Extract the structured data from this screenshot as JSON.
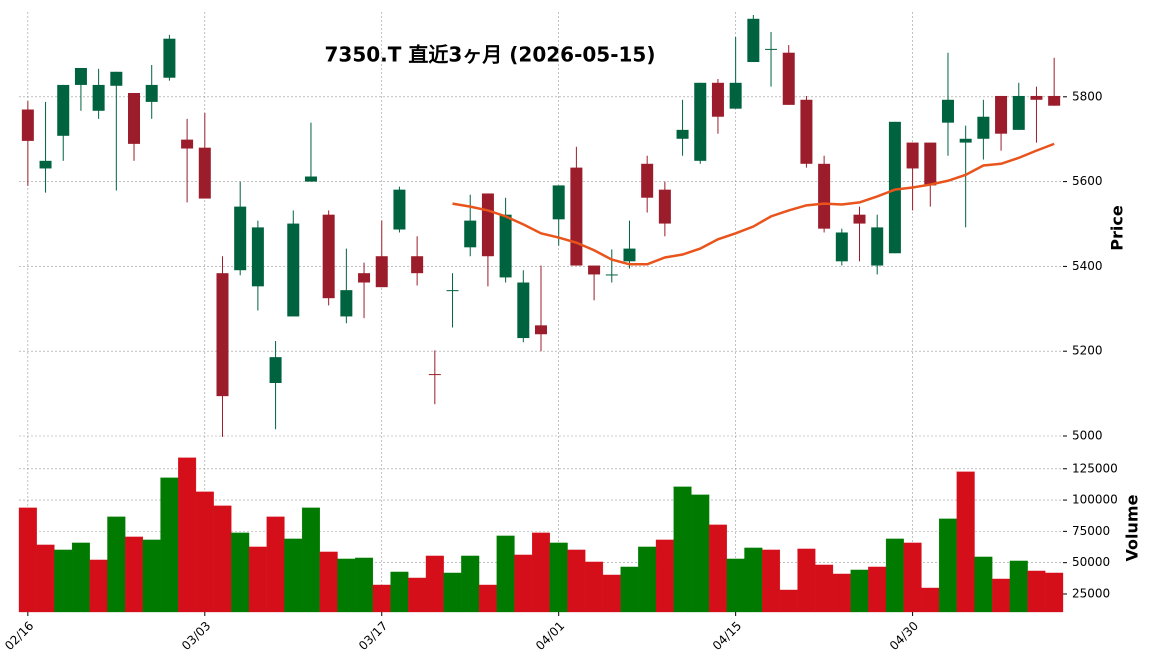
{
  "chart_data": {
    "type": "candlestick",
    "title": "7350.T  直近3ヶ月  (2026-05-15)",
    "categories": [
      "02/16",
      null,
      null,
      null,
      null,
      null,
      null,
      null,
      null,
      null,
      "03/03",
      null,
      null,
      null,
      null,
      null,
      null,
      null,
      null,
      null,
      "03/17",
      null,
      null,
      null,
      null,
      null,
      null,
      null,
      null,
      null,
      "04/01",
      null,
      null,
      null,
      null,
      null,
      null,
      null,
      null,
      null,
      "04/15",
      null,
      null,
      null,
      null,
      null,
      null,
      null,
      null,
      null,
      "04/30",
      null,
      null,
      null,
      null,
      null,
      null,
      null,
      null
    ],
    "open": [
      5770,
      5631,
      5708,
      5828,
      5767,
      5826,
      5809,
      5788,
      5845,
      5699,
      5680,
      5384,
      5391,
      5353,
      5125,
      5282,
      5600,
      5522,
      5282,
      5384,
      5424,
      5487,
      5424,
      5146,
      5344,
      5445,
      5572,
      5374,
      5231,
      5261,
      5511,
      5633,
      5402,
      5381,
      5412,
      5642,
      5581,
      5701,
      5649,
      5833,
      5772,
      5882,
      5913,
      5904,
      5793,
      5642,
      5412,
      5522,
      5402,
      5431,
      5692,
      5692,
      5739,
      5692,
      5701,
      5802,
      5722,
      5802,
      5802
    ],
    "high": [
      5790,
      5788,
      5828,
      5868,
      5866,
      5859,
      5809,
      5875,
      5946,
      5748,
      5762,
      5424,
      5600,
      5508,
      5224,
      5532,
      5739,
      5532,
      5442,
      5409,
      5508,
      5588,
      5471,
      5202,
      5384,
      5569,
      5572,
      5562,
      5391,
      5402,
      5591,
      5682,
      5402,
      5440,
      5508,
      5661,
      5600,
      5793,
      5833,
      5842,
      5941,
      5993,
      5953,
      5922,
      5802,
      5661,
      5489,
      5541,
      5522,
      5741,
      5692,
      5692,
      5904,
      5732,
      5793,
      5802,
      5833,
      5824,
      5892
    ],
    "low": [
      5590,
      5574,
      5649,
      5767,
      5748,
      5579,
      5649,
      5748,
      5838,
      5551,
      5560,
      4998,
      5379,
      5296,
      5016,
      5282,
      5600,
      5308,
      5266,
      5278,
      5351,
      5480,
      5355,
      5075,
      5256,
      5424,
      5353,
      5362,
      5221,
      5200,
      5449,
      5402,
      5320,
      5362,
      5395,
      5527,
      5471,
      5661,
      5642,
      5713,
      5772,
      5882,
      5824,
      5781,
      5633,
      5480,
      5402,
      5412,
      5381,
      5431,
      5532,
      5541,
      5661,
      5492,
      5652,
      5673,
      5722,
      5692,
      5779
    ],
    "close": [
      5696,
      5649,
      5828,
      5868,
      5828,
      5859,
      5689,
      5828,
      5937,
      5678,
      5560,
      5094,
      5541,
      5492,
      5186,
      5501,
      5612,
      5325,
      5344,
      5362,
      5351,
      5581,
      5384,
      5145,
      5344,
      5508,
      5424,
      5522,
      5362,
      5240,
      5591,
      5402,
      5381,
      5381,
      5442,
      5562,
      5501,
      5722,
      5833,
      5753,
      5833,
      5984,
      5913,
      5781,
      5642,
      5489,
      5480,
      5501,
      5492,
      5741,
      5631,
      5591,
      5793,
      5701,
      5753,
      5713,
      5802,
      5793,
      5779
    ],
    "up_color": "#006340",
    "down_color": "#9b1c2a",
    "moving_average": {
      "color": "#e8541b",
      "values": [
        null,
        null,
        null,
        null,
        null,
        null,
        null,
        null,
        null,
        null,
        null,
        null,
        null,
        null,
        null,
        null,
        null,
        null,
        null,
        null,
        null,
        null,
        null,
        null,
        5548,
        5541,
        5532,
        5518,
        5499,
        5478,
        5468,
        5456,
        5438,
        5416,
        5405,
        5405,
        5421,
        5428,
        5442,
        5464,
        5478,
        5494,
        5518,
        5532,
        5544,
        5548,
        5546,
        5551,
        5565,
        5581,
        5586,
        5593,
        5602,
        5616,
        5638,
        5642,
        5656,
        5673,
        5689
      ]
    },
    "ylim": [
      5000,
      6000
    ],
    "yticks": [
      5000,
      5200,
      5400,
      5600,
      5800
    ],
    "ylabel": "Price",
    "grid": true,
    "volume": {
      "values": [
        93800,
        64200,
        60200,
        65800,
        52200,
        86600,
        70600,
        68200,
        117800,
        133800,
        106600,
        95400,
        73800,
        62600,
        86600,
        69000,
        93800,
        58600,
        53000,
        53800,
        32200,
        42600,
        37800,
        55400,
        41800,
        55400,
        32200,
        71400,
        56200,
        73800,
        65800,
        60200,
        50600,
        40200,
        46600,
        62600,
        68200,
        110600,
        104200,
        80200,
        53000,
        61800,
        60200,
        28200,
        61000,
        48200,
        41000,
        44200,
        46600,
        69000,
        65800,
        29800,
        85000,
        122600,
        54600,
        37000,
        51400,
        43400,
        41800
      ],
      "colors": [
        "#d40f1a",
        "#d40f1a",
        "#007a00",
        "#007a00",
        "#d40f1a",
        "#007a00",
        "#d40f1a",
        "#007a00",
        "#007a00",
        "#d40f1a",
        "#d40f1a",
        "#d40f1a",
        "#007a00",
        "#d40f1a",
        "#d40f1a",
        "#007a00",
        "#007a00",
        "#d40f1a",
        "#007a00",
        "#007a00",
        "#d40f1a",
        "#007a00",
        "#d40f1a",
        "#d40f1a",
        "#007a00",
        "#007a00",
        "#d40f1a",
        "#007a00",
        "#d40f1a",
        "#d40f1a",
        "#007a00",
        "#d40f1a",
        "#d40f1a",
        "#d40f1a",
        "#007a00",
        "#007a00",
        "#d40f1a",
        "#007a00",
        "#007a00",
        "#d40f1a",
        "#007a00",
        "#007a00",
        "#d40f1a",
        "#d40f1a",
        "#d40f1a",
        "#d40f1a",
        "#d40f1a",
        "#007a00",
        "#d40f1a",
        "#007a00",
        "#d40f1a",
        "#d40f1a",
        "#007a00",
        "#d40f1a",
        "#007a00",
        "#d40f1a",
        "#007a00",
        "#d40f1a",
        "#d40f1a"
      ],
      "ylim": [
        10600,
        136000
      ],
      "yticks": [
        25000,
        50000,
        75000,
        100000,
        125000
      ],
      "ylabel": "Volume"
    }
  }
}
